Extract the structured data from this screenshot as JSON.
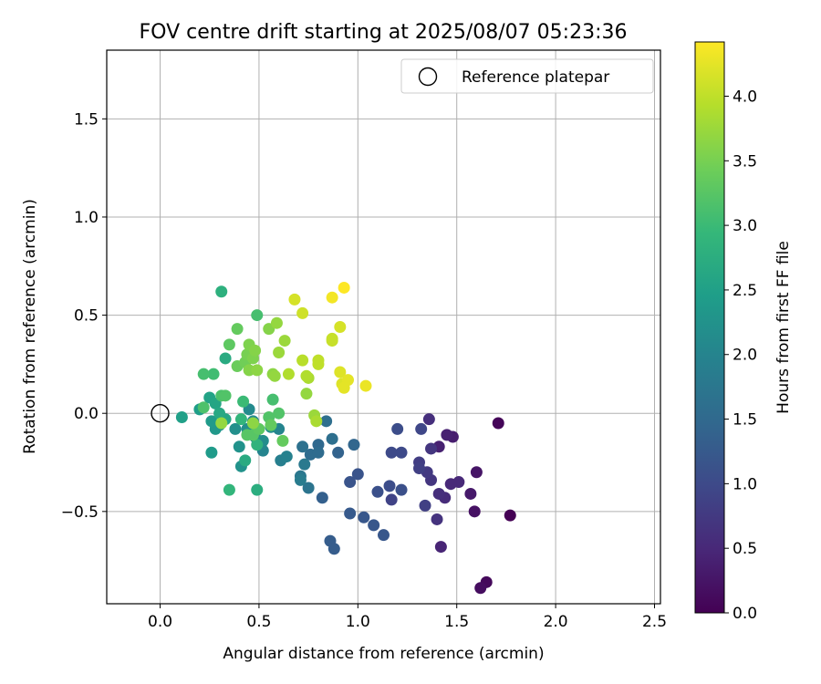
{
  "chart_data": {
    "type": "scatter",
    "title": "FOV centre drift starting at 2025/08/07 05:23:36",
    "xlabel": "Angular distance from reference (arcmin)",
    "ylabel": "Rotation from reference (arcmin)",
    "xlim": [
      -0.27,
      2.53
    ],
    "ylim": [
      -0.97,
      1.85
    ],
    "xticks": [
      0.0,
      0.5,
      1.0,
      1.5,
      2.0,
      2.5
    ],
    "xtick_labels": [
      "0.0",
      "0.5",
      "1.0",
      "1.5",
      "2.0",
      "2.5"
    ],
    "yticks": [
      -0.5,
      0.0,
      0.5,
      1.0,
      1.5
    ],
    "ytick_labels": [
      "−0.5",
      "0.0",
      "0.5",
      "1.0",
      "1.5"
    ],
    "grid": true,
    "legend": {
      "placement": "top-right",
      "entries": [
        {
          "label": "Reference platepar",
          "marker": "open-circle",
          "color": "#000000"
        }
      ]
    },
    "reference_point": {
      "x": 0.0,
      "y": 0.0
    },
    "colorbar": {
      "label": "Hours from first FF file",
      "colormap": "viridis",
      "range": [
        0.0,
        4.42
      ],
      "ticks": [
        0.0,
        0.5,
        1.0,
        1.5,
        2.0,
        2.5,
        3.0,
        3.5,
        4.0
      ],
      "tick_labels": [
        "0.0",
        "0.5",
        "1.0",
        "1.5",
        "2.0",
        "2.5",
        "3.0",
        "3.5",
        "4.0"
      ]
    },
    "series": [
      {
        "marker": "filled-circle",
        "points": [
          {
            "x": 1.77,
            "y": -0.52,
            "t": 0.0
          },
          {
            "x": 1.71,
            "y": -0.05,
            "t": 0.05
          },
          {
            "x": 1.65,
            "y": -0.86,
            "t": 0.1
          },
          {
            "x": 1.62,
            "y": -0.89,
            "t": 0.15
          },
          {
            "x": 1.59,
            "y": -0.5,
            "t": 0.2
          },
          {
            "x": 1.6,
            "y": -0.3,
            "t": 0.25
          },
          {
            "x": 1.57,
            "y": -0.41,
            "t": 0.3
          },
          {
            "x": 1.48,
            "y": -0.12,
            "t": 0.35
          },
          {
            "x": 1.45,
            "y": -0.11,
            "t": 0.4
          },
          {
            "x": 1.41,
            "y": -0.17,
            "t": 0.4
          },
          {
            "x": 1.42,
            "y": -0.68,
            "t": 0.45
          },
          {
            "x": 1.51,
            "y": -0.35,
            "t": 0.5
          },
          {
            "x": 1.47,
            "y": -0.36,
            "t": 0.5
          },
          {
            "x": 1.44,
            "y": -0.43,
            "t": 0.55
          },
          {
            "x": 1.41,
            "y": -0.41,
            "t": 0.6
          },
          {
            "x": 1.36,
            "y": -0.03,
            "t": 0.6
          },
          {
            "x": 1.4,
            "y": -0.54,
            "t": 0.65
          },
          {
            "x": 1.37,
            "y": -0.18,
            "t": 0.7
          },
          {
            "x": 1.37,
            "y": -0.34,
            "t": 0.7
          },
          {
            "x": 1.35,
            "y": -0.3,
            "t": 0.75
          },
          {
            "x": 1.31,
            "y": -0.25,
            "t": 0.8
          },
          {
            "x": 1.31,
            "y": -0.28,
            "t": 0.85
          },
          {
            "x": 1.34,
            "y": -0.47,
            "t": 0.85
          },
          {
            "x": 1.17,
            "y": -0.44,
            "t": 0.9
          },
          {
            "x": 1.32,
            "y": -0.08,
            "t": 0.95
          },
          {
            "x": 1.22,
            "y": -0.2,
            "t": 1.0
          },
          {
            "x": 1.17,
            "y": -0.2,
            "t": 1.0
          },
          {
            "x": 1.2,
            "y": -0.08,
            "t": 1.05
          },
          {
            "x": 1.16,
            "y": -0.37,
            "t": 1.05
          },
          {
            "x": 1.22,
            "y": -0.39,
            "t": 1.1
          },
          {
            "x": 1.1,
            "y": -0.4,
            "t": 1.1
          },
          {
            "x": 1.0,
            "y": -0.31,
            "t": 1.15
          },
          {
            "x": 0.96,
            "y": -0.35,
            "t": 1.15
          },
          {
            "x": 1.03,
            "y": -0.53,
            "t": 1.2
          },
          {
            "x": 1.08,
            "y": -0.57,
            "t": 1.2
          },
          {
            "x": 1.13,
            "y": -0.62,
            "t": 1.2
          },
          {
            "x": 0.96,
            "y": -0.51,
            "t": 1.25
          },
          {
            "x": 0.86,
            "y": -0.65,
            "t": 1.3
          },
          {
            "x": 0.88,
            "y": -0.69,
            "t": 1.3
          },
          {
            "x": 0.82,
            "y": -0.43,
            "t": 1.35
          },
          {
            "x": 0.9,
            "y": -0.2,
            "t": 1.4
          },
          {
            "x": 0.98,
            "y": -0.16,
            "t": 1.45
          },
          {
            "x": 0.8,
            "y": -0.16,
            "t": 1.5
          },
          {
            "x": 0.76,
            "y": -0.21,
            "t": 1.55
          },
          {
            "x": 0.8,
            "y": -0.2,
            "t": 1.55
          },
          {
            "x": 0.84,
            "y": -0.04,
            "t": 1.6
          },
          {
            "x": 0.87,
            "y": -0.13,
            "t": 1.6
          },
          {
            "x": 0.72,
            "y": -0.17,
            "t": 1.65
          },
          {
            "x": 0.75,
            "y": -0.38,
            "t": 1.7
          },
          {
            "x": 0.71,
            "y": -0.32,
            "t": 1.75
          },
          {
            "x": 0.73,
            "y": -0.26,
            "t": 1.8
          },
          {
            "x": 0.71,
            "y": -0.34,
            "t": 1.85
          },
          {
            "x": 0.61,
            "y": -0.24,
            "t": 1.9
          },
          {
            "x": 0.64,
            "y": -0.22,
            "t": 1.95
          },
          {
            "x": 0.6,
            "y": -0.08,
            "t": 2.0
          },
          {
            "x": 0.52,
            "y": -0.19,
            "t": 2.0
          },
          {
            "x": 0.51,
            "y": -0.16,
            "t": 2.05
          },
          {
            "x": 0.48,
            "y": -0.12,
            "t": 2.05
          },
          {
            "x": 0.45,
            "y": 0.02,
            "t": 2.1
          },
          {
            "x": 0.47,
            "y": -0.04,
            "t": 2.1
          },
          {
            "x": 0.56,
            "y": -0.07,
            "t": 2.15
          },
          {
            "x": 0.52,
            "y": -0.14,
            "t": 2.15
          },
          {
            "x": 0.44,
            "y": -0.08,
            "t": 2.2
          },
          {
            "x": 0.38,
            "y": -0.08,
            "t": 2.2
          },
          {
            "x": 0.4,
            "y": -0.17,
            "t": 2.25
          },
          {
            "x": 0.41,
            "y": -0.27,
            "t": 2.25
          },
          {
            "x": 0.3,
            "y": -0.06,
            "t": 2.3
          },
          {
            "x": 0.28,
            "y": -0.08,
            "t": 2.35
          },
          {
            "x": 0.26,
            "y": -0.04,
            "t": 2.4
          },
          {
            "x": 0.26,
            "y": -0.2,
            "t": 2.4
          },
          {
            "x": 0.2,
            "y": 0.02,
            "t": 2.45
          },
          {
            "x": 0.11,
            "y": -0.02,
            "t": 2.5
          },
          {
            "x": 0.25,
            "y": 0.08,
            "t": 2.55
          },
          {
            "x": 0.28,
            "y": 0.05,
            "t": 2.6
          },
          {
            "x": 0.33,
            "y": -0.03,
            "t": 2.6
          },
          {
            "x": 0.3,
            "y": 0.0,
            "t": 2.65
          },
          {
            "x": 0.43,
            "y": -0.24,
            "t": 2.7
          },
          {
            "x": 0.33,
            "y": 0.28,
            "t": 2.7
          },
          {
            "x": 0.49,
            "y": -0.39,
            "t": 2.75
          },
          {
            "x": 0.31,
            "y": 0.62,
            "t": 2.8
          },
          {
            "x": 0.49,
            "y": -0.16,
            "t": 2.85
          },
          {
            "x": 0.35,
            "y": -0.39,
            "t": 2.9
          },
          {
            "x": 0.41,
            "y": -0.03,
            "t": 2.9
          },
          {
            "x": 0.42,
            "y": 0.06,
            "t": 3.0
          },
          {
            "x": 0.27,
            "y": 0.2,
            "t": 3.05
          },
          {
            "x": 0.22,
            "y": 0.2,
            "t": 3.1
          },
          {
            "x": 0.22,
            "y": 0.03,
            "t": 3.15
          },
          {
            "x": 0.31,
            "y": 0.09,
            "t": 3.15
          },
          {
            "x": 0.33,
            "y": 0.09,
            "t": 3.2
          },
          {
            "x": 0.57,
            "y": 0.07,
            "t": 3.1
          },
          {
            "x": 0.49,
            "y": 0.5,
            "t": 3.1
          },
          {
            "x": 0.55,
            "y": -0.02,
            "t": 3.2
          },
          {
            "x": 0.6,
            "y": 0.0,
            "t": 3.2
          },
          {
            "x": 0.44,
            "y": -0.11,
            "t": 3.25
          },
          {
            "x": 0.47,
            "y": -0.11,
            "t": 3.25
          },
          {
            "x": 0.5,
            "y": -0.08,
            "t": 3.3
          },
          {
            "x": 0.56,
            "y": -0.06,
            "t": 3.35
          },
          {
            "x": 0.62,
            "y": -0.14,
            "t": 3.35
          },
          {
            "x": 0.35,
            "y": 0.35,
            "t": 3.3
          },
          {
            "x": 0.39,
            "y": 0.43,
            "t": 3.35
          },
          {
            "x": 0.39,
            "y": 0.24,
            "t": 3.4
          },
          {
            "x": 0.43,
            "y": 0.26,
            "t": 3.45
          },
          {
            "x": 0.44,
            "y": 0.3,
            "t": 3.5
          },
          {
            "x": 0.45,
            "y": 0.35,
            "t": 3.55
          },
          {
            "x": 0.47,
            "y": 0.28,
            "t": 3.55
          },
          {
            "x": 0.48,
            "y": 0.32,
            "t": 3.6
          },
          {
            "x": 0.45,
            "y": 0.22,
            "t": 3.6
          },
          {
            "x": 0.49,
            "y": 0.22,
            "t": 3.65
          },
          {
            "x": 0.55,
            "y": 0.43,
            "t": 3.6
          },
          {
            "x": 0.57,
            "y": 0.2,
            "t": 3.65
          },
          {
            "x": 0.58,
            "y": 0.19,
            "t": 3.7
          },
          {
            "x": 0.59,
            "y": 0.46,
            "t": 3.7
          },
          {
            "x": 0.6,
            "y": 0.31,
            "t": 3.75
          },
          {
            "x": 0.63,
            "y": 0.37,
            "t": 3.75
          },
          {
            "x": 0.31,
            "y": -0.05,
            "t": 3.7
          },
          {
            "x": 0.47,
            "y": -0.05,
            "t": 3.65
          },
          {
            "x": 0.74,
            "y": 0.1,
            "t": 3.7
          },
          {
            "x": 0.78,
            "y": -0.01,
            "t": 3.75
          },
          {
            "x": 0.79,
            "y": -0.04,
            "t": 3.85
          },
          {
            "x": 0.75,
            "y": 0.18,
            "t": 3.85
          },
          {
            "x": 0.65,
            "y": 0.2,
            "t": 3.9
          },
          {
            "x": 0.74,
            "y": 0.19,
            "t": 3.9
          },
          {
            "x": 0.72,
            "y": 0.27,
            "t": 3.95
          },
          {
            "x": 0.8,
            "y": 0.25,
            "t": 4.0
          },
          {
            "x": 0.8,
            "y": 0.27,
            "t": 4.0
          },
          {
            "x": 0.87,
            "y": 0.38,
            "t": 4.05
          },
          {
            "x": 0.87,
            "y": 0.37,
            "t": 4.05
          },
          {
            "x": 0.72,
            "y": 0.51,
            "t": 4.1
          },
          {
            "x": 0.68,
            "y": 0.58,
            "t": 4.15
          },
          {
            "x": 0.91,
            "y": 0.44,
            "t": 4.15
          },
          {
            "x": 0.91,
            "y": 0.21,
            "t": 4.2
          },
          {
            "x": 0.92,
            "y": 0.15,
            "t": 4.2
          },
          {
            "x": 0.95,
            "y": 0.17,
            "t": 4.25
          },
          {
            "x": 0.93,
            "y": 0.13,
            "t": 4.25
          },
          {
            "x": 1.04,
            "y": 0.14,
            "t": 4.3
          },
          {
            "x": 0.87,
            "y": 0.59,
            "t": 4.35
          },
          {
            "x": 0.93,
            "y": 0.64,
            "t": 4.42
          }
        ]
      }
    ]
  }
}
